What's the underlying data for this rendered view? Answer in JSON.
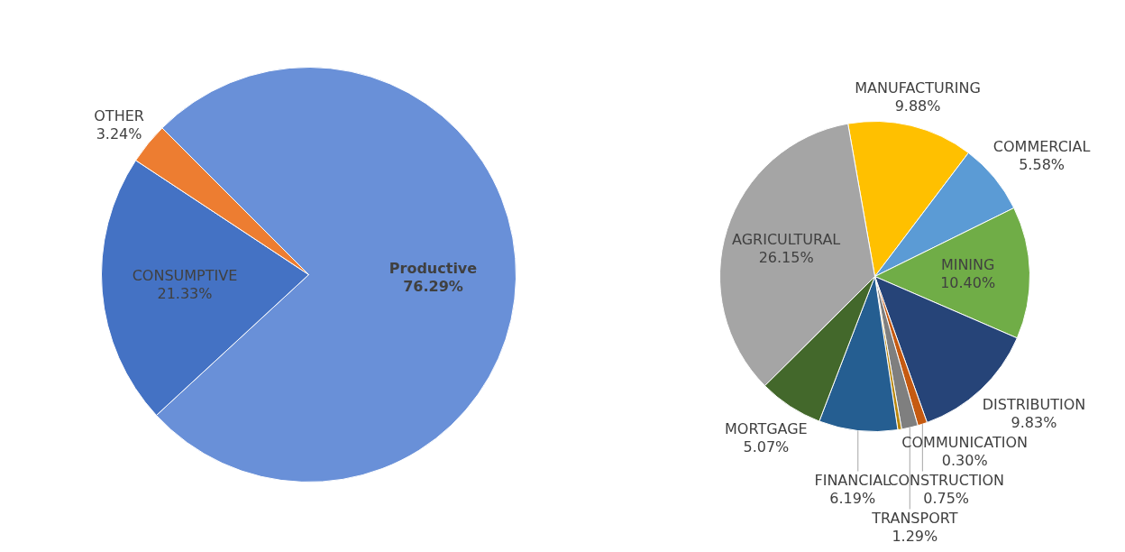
{
  "chart_data": [
    {
      "type": "pie",
      "categories": [
        "Productive",
        "CONSUMPTIVE",
        "OTHER"
      ],
      "values": [
        76.29,
        21.33,
        3.24
      ],
      "colors": [
        "#6990d8",
        "#4472c4",
        "#ed7d31"
      ],
      "value_labels": [
        "76.29%",
        "21.33%",
        "3.24%"
      ]
    },
    {
      "type": "pie",
      "categories": [
        "MANUFACTURING",
        "COMMERCIAL",
        "MINING",
        "DISTRIBUTION",
        "CONSTRUCTION",
        "TRANSPORT",
        "COMMUNICATION",
        "FINANCIAL",
        "MORTGAGE",
        "AGRICULTURAL"
      ],
      "values": [
        9.88,
        5.58,
        10.4,
        9.83,
        0.75,
        1.29,
        0.3,
        6.19,
        5.07,
        26.15
      ],
      "colors": [
        "#ffc000",
        "#5b9bd5",
        "#70ad47",
        "#264478",
        "#c55a11",
        "#7f7f7f",
        "#b8860b",
        "#255e91",
        "#43682b",
        "#a5a5a5"
      ],
      "value_labels": [
        "9.88%",
        "5.58%",
        "10.40%",
        "9.83%",
        "0.75%",
        "1.29%",
        "0.30%",
        "6.19%",
        "5.07%",
        "26.15%"
      ]
    }
  ]
}
